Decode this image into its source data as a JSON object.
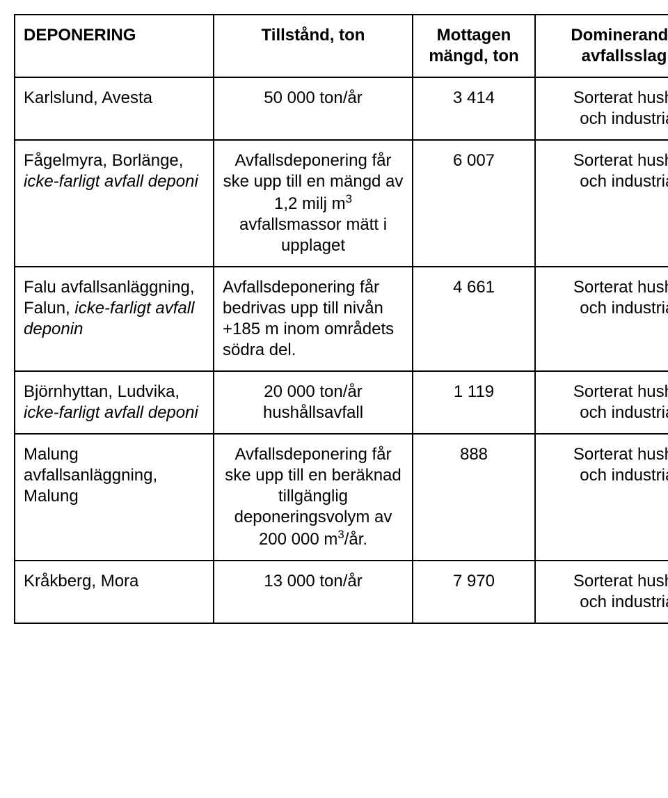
{
  "table": {
    "headers": {
      "c0": "DEPONERING",
      "c1": "Tillstånd, ton",
      "c2": "Mottagen mängd, ton",
      "c3": "Dominerande avfallsslag"
    },
    "rows": [
      {
        "c0_plain": "Karlslund, Avesta",
        "c1": "50 000 ton/år",
        "c2": "3 414",
        "c3": "Sorterat hushålls- och industriavfall"
      },
      {
        "c0_prefix": "Fågelmyra, Borlänge, ",
        "c0_italic": "icke-farligt avfall deponi",
        "c1_html": "Avfallsdeponering får ske upp till en mängd av 1,2 milj m<sup>3</sup> avfallsmassor mätt i upplaget",
        "c2": "6 007",
        "c3": "Sorterat hushålls- och industriavfall"
      },
      {
        "c0_prefix": "Falu avfallsanläggning, Falun, ",
        "c0_italic": "icke-farligt avfall deponin",
        "c1": "Avfallsdeponering får bedrivas upp till nivån +185 m inom områdets södra del.",
        "c1_align": "left",
        "c2": "4 661",
        "c3": "Sorterat hushålls- och industriavfall"
      },
      {
        "c0_prefix": "Björnhyttan, Ludvika, ",
        "c0_italic": "icke-farligt avfall deponi",
        "c1": "20 000 ton/år hushållsavfall",
        "c2": "1 119",
        "c3": "Sorterat hushålls- och industriavfall"
      },
      {
        "c0_plain": "Malung avfallsanläggning, Malung",
        "c1_html": "Avfallsdeponering får ske upp till en beräknad tillgänglig deponeringsvolym av 200 000 m<sup>3</sup>/år.",
        "c2": "888",
        "c3": "Sorterat hushålls- och industriavfall"
      },
      {
        "c0_plain": "Kråkberg, Mora",
        "c1": "13 000 ton/år",
        "c2": "7 970",
        "c3": "Sorterat hushålls- och industriavfall"
      }
    ]
  },
  "styles": {
    "font_family": "Arial",
    "font_size_pt": 18,
    "border_color": "#000000",
    "background_color": "#ffffff",
    "text_color": "#000000"
  }
}
